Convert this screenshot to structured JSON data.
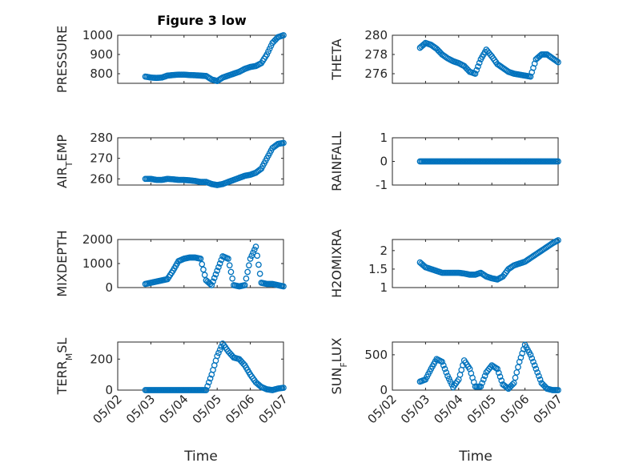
{
  "figure": {
    "title": "Figure 3 low",
    "xlabel": "Time",
    "marker_color": "#0072BD"
  },
  "chart_data": [
    {
      "id": "pressure",
      "type": "scatter",
      "title": "Figure 3 low",
      "ylabel": "PRESSURE",
      "ylim": [
        750,
        1000
      ],
      "yticks": [
        800,
        900,
        1000
      ],
      "ytick_labels": [
        "800",
        "900",
        "1000"
      ],
      "xlim": [
        "05/02",
        "05/07"
      ],
      "xticks": [
        "05/02",
        "05/03",
        "05/04",
        "05/05",
        "05/06",
        "05/07"
      ],
      "show_xtick_labels": false,
      "grid": true,
      "x": [
        "05/02 20:00",
        "05/03 00:00",
        "05/03 04:00",
        "05/03 08:00",
        "05/03 12:00",
        "05/03 16:00",
        "05/03 20:00",
        "05/04 00:00",
        "05/04 04:00",
        "05/04 08:00",
        "05/04 12:00",
        "05/04 16:00",
        "05/04 20:00",
        "05/05 00:00",
        "05/05 04:00",
        "05/05 08:00",
        "05/05 12:00",
        "05/05 16:00",
        "05/05 20:00",
        "05/06 00:00",
        "05/06 04:00",
        "05/06 08:00",
        "05/06 12:00",
        "05/06 16:00",
        "05/06 20:00",
        "05/07 00:00"
      ],
      "y": [
        785,
        780,
        778,
        780,
        790,
        793,
        795,
        795,
        793,
        792,
        790,
        788,
        770,
        762,
        780,
        790,
        800,
        810,
        825,
        835,
        840,
        855,
        900,
        960,
        990,
        1000
      ]
    },
    {
      "id": "theta",
      "type": "scatter",
      "title": "",
      "ylabel": "THETA",
      "ylim": [
        275,
        280
      ],
      "yticks": [
        276,
        278,
        280
      ],
      "ytick_labels": [
        "276",
        "278",
        "280"
      ],
      "xlim": [
        "05/02",
        "05/07"
      ],
      "xticks": [
        "05/02",
        "05/03",
        "05/04",
        "05/05",
        "05/06",
        "05/07"
      ],
      "show_xtick_labels": false,
      "grid": true,
      "x": [
        "05/02 20:00",
        "05/03 00:00",
        "05/03 04:00",
        "05/03 08:00",
        "05/03 12:00",
        "05/03 16:00",
        "05/03 20:00",
        "05/04 00:00",
        "05/04 04:00",
        "05/04 08:00",
        "05/04 12:00",
        "05/04 16:00",
        "05/04 20:00",
        "05/05 00:00",
        "05/05 04:00",
        "05/05 08:00",
        "05/05 12:00",
        "05/05 16:00",
        "05/05 20:00",
        "05/06 00:00",
        "05/06 04:00",
        "05/06 08:00",
        "05/06 12:00",
        "05/06 16:00",
        "05/06 20:00",
        "05/07 00:00"
      ],
      "y": [
        278.7,
        279.2,
        279.0,
        278.6,
        278.0,
        277.6,
        277.3,
        277.1,
        276.8,
        276.2,
        276.0,
        277.5,
        278.5,
        277.8,
        277.0,
        276.6,
        276.2,
        276.0,
        275.9,
        275.8,
        275.7,
        277.5,
        278.0,
        278.0,
        277.6,
        277.2
      ]
    },
    {
      "id": "air_temp",
      "type": "scatter",
      "title": "",
      "ylabel": "AIR_TEMP",
      "ylim": [
        257,
        280
      ],
      "yticks": [
        260,
        270,
        280
      ],
      "ytick_labels": [
        "260",
        "270",
        "280"
      ],
      "xlim": [
        "05/02",
        "05/07"
      ],
      "xticks": [
        "05/02",
        "05/03",
        "05/04",
        "05/05",
        "05/06",
        "05/07"
      ],
      "show_xtick_labels": false,
      "grid": true,
      "x": [
        "05/02 20:00",
        "05/03 00:00",
        "05/03 04:00",
        "05/03 08:00",
        "05/03 12:00",
        "05/03 16:00",
        "05/03 20:00",
        "05/04 00:00",
        "05/04 04:00",
        "05/04 08:00",
        "05/04 12:00",
        "05/04 16:00",
        "05/04 20:00",
        "05/05 00:00",
        "05/05 04:00",
        "05/05 08:00",
        "05/05 12:00",
        "05/05 16:00",
        "05/05 20:00",
        "05/06 00:00",
        "05/06 04:00",
        "05/06 08:00",
        "05/06 12:00",
        "05/06 16:00",
        "05/06 20:00",
        "05/07 00:00"
      ],
      "y": [
        260,
        260,
        259.5,
        259.5,
        260,
        259.8,
        259.5,
        259.5,
        259.3,
        259,
        258.5,
        258.5,
        257.5,
        257,
        257.5,
        258.5,
        259.5,
        260.5,
        261.5,
        262,
        263,
        265,
        270,
        275,
        277,
        277.5
      ]
    },
    {
      "id": "rainfall",
      "type": "scatter",
      "title": "",
      "ylabel": "RAINFALL",
      "ylim": [
        -1,
        1
      ],
      "yticks": [
        -1,
        0,
        1
      ],
      "ytick_labels": [
        "-1",
        "0",
        "1"
      ],
      "xlim": [
        "05/02",
        "05/07"
      ],
      "xticks": [
        "05/02",
        "05/03",
        "05/04",
        "05/05",
        "05/06",
        "05/07"
      ],
      "show_xtick_labels": false,
      "grid": true,
      "x": [
        "05/02 20:00",
        "05/03 00:00",
        "05/03 04:00",
        "05/03 08:00",
        "05/03 12:00",
        "05/03 16:00",
        "05/03 20:00",
        "05/04 00:00",
        "05/04 04:00",
        "05/04 08:00",
        "05/04 12:00",
        "05/04 16:00",
        "05/04 20:00",
        "05/05 00:00",
        "05/05 04:00",
        "05/05 08:00",
        "05/05 12:00",
        "05/05 16:00",
        "05/05 20:00",
        "05/06 00:00",
        "05/06 04:00",
        "05/06 08:00",
        "05/06 12:00",
        "05/06 16:00",
        "05/06 20:00",
        "05/07 00:00"
      ],
      "y": [
        0,
        0,
        0,
        0,
        0,
        0,
        0,
        0,
        0,
        0,
        0,
        0,
        0,
        0,
        0,
        0,
        0,
        0,
        0,
        0,
        0,
        0,
        0,
        0,
        0,
        0
      ]
    },
    {
      "id": "mixdepth",
      "type": "scatter",
      "title": "",
      "ylabel": "MIXDEPTH",
      "ylim": [
        0,
        2000
      ],
      "yticks": [
        0,
        1000,
        2000
      ],
      "ytick_labels": [
        "0",
        "1000",
        "2000"
      ],
      "xlim": [
        "05/02",
        "05/07"
      ],
      "xticks": [
        "05/02",
        "05/03",
        "05/04",
        "05/05",
        "05/06",
        "05/07"
      ],
      "show_xtick_labels": false,
      "grid": true,
      "x": [
        "05/02 20:00",
        "05/03 00:00",
        "05/03 04:00",
        "05/03 08:00",
        "05/03 12:00",
        "05/03 16:00",
        "05/03 20:00",
        "05/04 00:00",
        "05/04 04:00",
        "05/04 08:00",
        "05/04 12:00",
        "05/04 16:00",
        "05/04 20:00",
        "05/05 00:00",
        "05/05 04:00",
        "05/05 08:00",
        "05/05 12:00",
        "05/05 16:00",
        "05/05 20:00",
        "05/06 00:00",
        "05/06 04:00",
        "05/06 08:00",
        "05/06 12:00",
        "05/06 16:00",
        "05/06 20:00",
        "05/07 00:00"
      ],
      "y": [
        150,
        200,
        250,
        300,
        350,
        700,
        1100,
        1200,
        1250,
        1250,
        1200,
        300,
        100,
        700,
        1300,
        1200,
        100,
        50,
        100,
        1200,
        1700,
        200,
        150,
        150,
        100,
        50
      ]
    },
    {
      "id": "h2omixra",
      "type": "scatter",
      "title": "",
      "ylabel": "H2OMIXRA",
      "ylim": [
        1,
        2.3
      ],
      "yticks": [
        1,
        1.5,
        2
      ],
      "ytick_labels": [
        "1",
        "1.5",
        "2"
      ],
      "xlim": [
        "05/02",
        "05/07"
      ],
      "xticks": [
        "05/02",
        "05/03",
        "05/04",
        "05/05",
        "05/06",
        "05/07"
      ],
      "show_xtick_labels": false,
      "grid": true,
      "x": [
        "05/02 20:00",
        "05/03 00:00",
        "05/03 04:00",
        "05/03 08:00",
        "05/03 12:00",
        "05/03 16:00",
        "05/03 20:00",
        "05/04 00:00",
        "05/04 04:00",
        "05/04 08:00",
        "05/04 12:00",
        "05/04 16:00",
        "05/04 20:00",
        "05/05 00:00",
        "05/05 04:00",
        "05/05 08:00",
        "05/05 12:00",
        "05/05 16:00",
        "05/05 20:00",
        "05/06 00:00",
        "05/06 04:00",
        "05/06 08:00",
        "05/06 12:00",
        "05/06 16:00",
        "05/06 20:00",
        "05/07 00:00"
      ],
      "y": [
        1.68,
        1.55,
        1.5,
        1.45,
        1.4,
        1.4,
        1.4,
        1.4,
        1.38,
        1.35,
        1.35,
        1.4,
        1.3,
        1.25,
        1.22,
        1.3,
        1.5,
        1.6,
        1.65,
        1.7,
        1.8,
        1.9,
        2.0,
        2.1,
        2.2,
        2.28
      ]
    },
    {
      "id": "terr_msl",
      "type": "scatter",
      "title": "",
      "ylabel": "TERR_MSL",
      "ylim": [
        0,
        310
      ],
      "yticks": [
        0,
        200
      ],
      "ytick_labels": [
        "0",
        "200"
      ],
      "xlim": [
        "05/02",
        "05/07"
      ],
      "xticks": [
        "05/02",
        "05/03",
        "05/04",
        "05/05",
        "05/06",
        "05/07"
      ],
      "xtick_labels": [
        "05/02",
        "05/03",
        "05/04",
        "05/05",
        "05/06",
        "05/07"
      ],
      "show_xtick_labels": true,
      "grid": true,
      "x": [
        "05/02 20:00",
        "05/03 00:00",
        "05/03 04:00",
        "05/03 08:00",
        "05/03 12:00",
        "05/03 16:00",
        "05/03 20:00",
        "05/04 00:00",
        "05/04 04:00",
        "05/04 08:00",
        "05/04 12:00",
        "05/04 16:00",
        "05/04 20:00",
        "05/05 00:00",
        "05/05 04:00",
        "05/05 08:00",
        "05/05 12:00",
        "05/05 16:00",
        "05/05 20:00",
        "05/06 00:00",
        "05/06 04:00",
        "05/06 08:00",
        "05/06 12:00",
        "05/06 16:00",
        "05/06 20:00",
        "05/07 00:00"
      ],
      "y": [
        0,
        0,
        0,
        0,
        0,
        0,
        0,
        0,
        0,
        0,
        0,
        0,
        100,
        220,
        300,
        250,
        210,
        200,
        160,
        100,
        50,
        20,
        5,
        0,
        10,
        15
      ]
    },
    {
      "id": "sun_flux",
      "type": "scatter",
      "title": "",
      "ylabel": "SUN_FLUX",
      "ylim": [
        0,
        680
      ],
      "yticks": [
        0,
        500
      ],
      "ytick_labels": [
        "0",
        "500"
      ],
      "xlim": [
        "05/02",
        "05/07"
      ],
      "xticks": [
        "05/02",
        "05/03",
        "05/04",
        "05/05",
        "05/06",
        "05/07"
      ],
      "xtick_labels": [
        "05/02",
        "05/03",
        "05/04",
        "05/05",
        "05/06",
        "05/07"
      ],
      "show_xtick_labels": true,
      "grid": true,
      "x": [
        "05/02 20:00",
        "05/03 00:00",
        "05/03 04:00",
        "05/03 08:00",
        "05/03 12:00",
        "05/03 16:00",
        "05/03 20:00",
        "05/04 00:00",
        "05/04 04:00",
        "05/04 08:00",
        "05/04 12:00",
        "05/04 16:00",
        "05/04 20:00",
        "05/05 00:00",
        "05/05 04:00",
        "05/05 08:00",
        "05/05 12:00",
        "05/05 16:00",
        "05/05 20:00",
        "05/06 00:00",
        "05/06 04:00",
        "05/06 08:00",
        "05/06 12:00",
        "05/06 16:00",
        "05/06 20:00",
        "05/07 00:00"
      ],
      "y": [
        120,
        150,
        300,
        440,
        400,
        200,
        40,
        150,
        420,
        300,
        50,
        50,
        250,
        350,
        300,
        80,
        20,
        100,
        400,
        640,
        500,
        300,
        100,
        20,
        0,
        0
      ]
    }
  ]
}
